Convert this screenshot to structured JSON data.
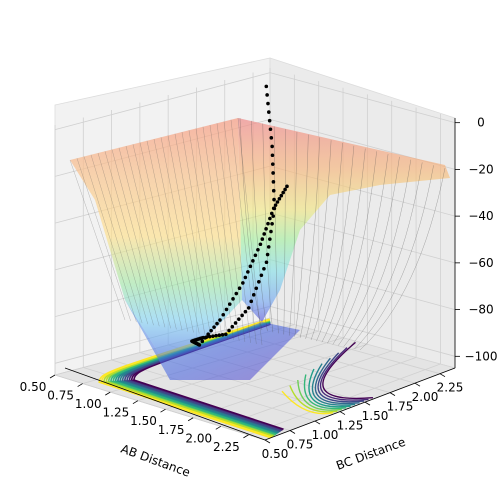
{
  "chart_data": {
    "type": "surface",
    "xlabel": "AB Distance",
    "ylabel": "BC Distance",
    "zlabel": "",
    "x_ticks": [
      "0.50",
      "0.75",
      "1.00",
      "1.25",
      "1.50",
      "1.75",
      "2.00",
      "2.25"
    ],
    "y_ticks": [
      "0.50",
      "0.75",
      "1.00",
      "1.25",
      "1.50",
      "1.75",
      "2.00",
      "2.25"
    ],
    "z_ticks": [
      "0",
      "−20",
      "−40",
      "−60",
      "−80",
      "−100"
    ],
    "x_range": [
      0.5,
      2.4
    ],
    "y_range": [
      0.5,
      2.4
    ],
    "z_range": [
      -105,
      2
    ],
    "grid": true,
    "surface_colormap": "jet",
    "contour_colormap": "viridis",
    "trajectory": {
      "color": "#000000",
      "points": [
        {
          "ab": 0.52,
          "bc": 2.35,
          "v": -5
        },
        {
          "ab": 0.58,
          "bc": 2.35,
          "v": -30
        },
        {
          "ab": 0.66,
          "bc": 2.3,
          "v": -55
        },
        {
          "ab": 0.75,
          "bc": 2.15,
          "v": -75
        },
        {
          "ab": 0.85,
          "bc": 1.9,
          "v": -90
        },
        {
          "ab": 0.95,
          "bc": 1.6,
          "v": -96
        },
        {
          "ab": 1.05,
          "bc": 1.3,
          "v": -92
        },
        {
          "ab": 1.2,
          "bc": 1.05,
          "v": -88
        },
        {
          "ab": 1.4,
          "bc": 0.92,
          "v": -85
        },
        {
          "ab": 1.65,
          "bc": 0.86,
          "v": -70
        },
        {
          "ab": 1.9,
          "bc": 0.82,
          "v": -50
        },
        {
          "ab": 2.1,
          "bc": 0.78,
          "v": -30
        },
        {
          "ab": 2.25,
          "bc": 0.75,
          "v": -12
        },
        {
          "ab": 2.4,
          "bc": 0.72,
          "v": 0
        }
      ]
    }
  }
}
